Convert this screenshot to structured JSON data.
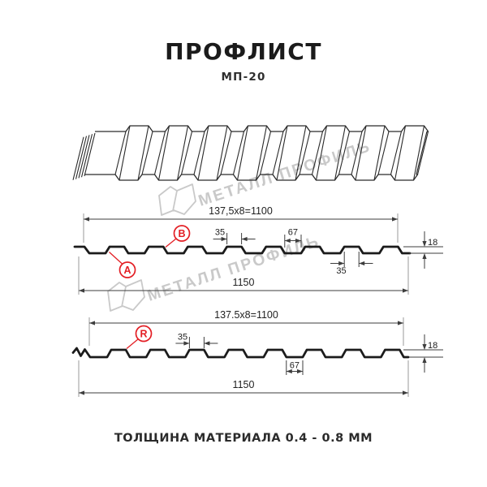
{
  "header": {
    "title": "ПРОФЛИСТ",
    "subtitle": "МП-20"
  },
  "watermark": {
    "text": "МЕТАЛЛ ПРОФИЛЬ"
  },
  "colors": {
    "background": "#ffffff",
    "ink": "#1b1b1b",
    "dim_line": "#3d3d3d",
    "ext_line": "#9a9a9a",
    "red": "#e31e24",
    "watermark": "#c9c9c9",
    "text": "#222222",
    "sketch": "#2a2a2a"
  },
  "sections": [
    {
      "id": "upper",
      "pitch_dim": "137,5x8=1100",
      "overall_dim": "1150",
      "rib_top_dim": "35",
      "valley_dim": "67",
      "height_dim": "18",
      "rib_bottom_dim": "35",
      "markers": [
        {
          "label": "A"
        },
        {
          "label": "B"
        }
      ]
    },
    {
      "id": "lower",
      "pitch_dim": "137.5x8=1100",
      "overall_dim": "1150",
      "rib_top_dim": "35",
      "valley_dim": "67",
      "height_dim": "18",
      "markers": [
        {
          "label": "R"
        }
      ]
    }
  ],
  "footer": {
    "note": "ТОЛЩИНА МАТЕРИАЛА 0.4 - 0.8 ММ"
  }
}
